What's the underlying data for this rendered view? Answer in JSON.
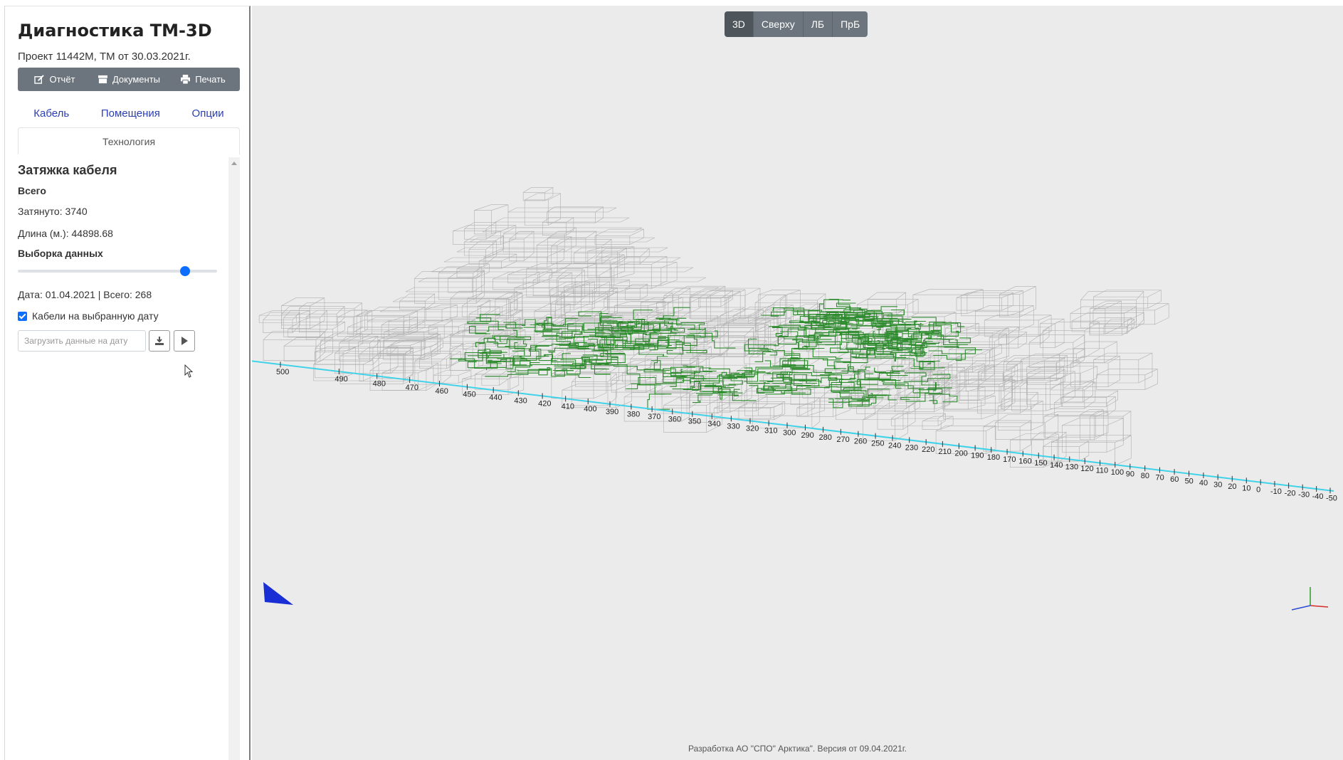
{
  "app": {
    "title": "Диагностика ТМ-3D",
    "subtitle": "Проект 11442М, ТМ от 30.03.2021г."
  },
  "toolbar": {
    "report": "Отчёт",
    "documents": "Документы",
    "print": "Печать"
  },
  "nav": {
    "cable": "Кабель",
    "rooms": "Помещения",
    "options": "Опции",
    "technology": "Технология"
  },
  "panel": {
    "title": "Затяжка кабеля",
    "total_heading": "Всего",
    "pulled": "Затянуто: 3740",
    "length": "Длина (м.): 44898.68",
    "selection_heading": "Выборка данных",
    "slider_fraction": 0.84,
    "date_info": "Дата: 01.04.2021 | Всего: 268",
    "checkbox_label": "Кабели на выбранную дату",
    "checkbox_checked": true,
    "load_placeholder": "Загрузить данные на дату"
  },
  "views": {
    "buttons": [
      "3D",
      "Сверху",
      "ЛБ",
      "ПрБ"
    ],
    "active": "3D"
  },
  "axis": {
    "ticks": [
      500,
      490,
      480,
      470,
      460,
      450,
      440,
      430,
      420,
      410,
      400,
      390,
      380,
      370,
      360,
      350,
      340,
      330,
      320,
      310,
      300,
      290,
      280,
      270,
      260,
      250,
      240,
      230,
      220,
      210,
      200,
      190,
      180,
      170,
      160,
      150,
      140,
      130,
      120,
      110,
      100,
      90,
      80,
      70,
      60,
      50,
      40,
      30,
      20,
      10,
      0,
      -10,
      -20,
      -30,
      -40,
      -50
    ]
  },
  "colors": {
    "cable": "#2e8b2e",
    "wireframe": "#9c9c9c",
    "axis": "#3fd2e8",
    "accent": "#0d6efd"
  },
  "footer": "Разработка АО \"СПО\" Арктика\". Версия от 09.04.2021г."
}
